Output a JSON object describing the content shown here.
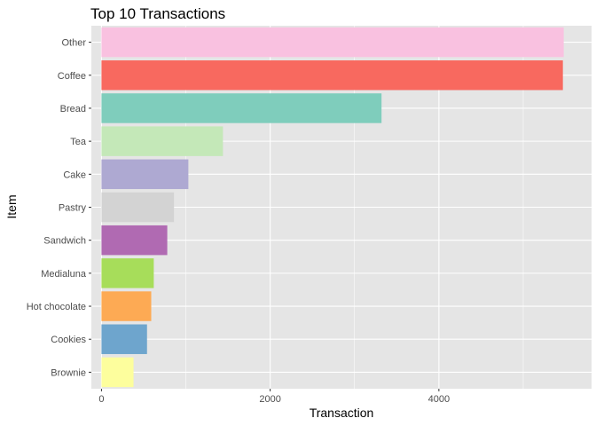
{
  "chart_data": {
    "type": "bar",
    "orientation": "horizontal",
    "title": "Top 10 Transactions",
    "xlabel": "Transaction",
    "ylabel": "Item",
    "xlim": [
      -120,
      5810
    ],
    "xticks": [
      0,
      2000,
      4000
    ],
    "grid": true,
    "legend": "none",
    "panel_background": "#E5E5E5",
    "grid_color": "#FFFFFF",
    "categories": [
      "Other",
      "Coffee",
      "Bread",
      "Tea",
      "Cake",
      "Pastry",
      "Sandwich",
      "Medialuna",
      "Hot chocolate",
      "Cookies",
      "Brownie"
    ],
    "values": [
      5480,
      5470,
      3320,
      1440,
      1030,
      860,
      780,
      620,
      590,
      540,
      380
    ],
    "colors": [
      "#F9C1E0",
      "#F8695F",
      "#7FCDBC",
      "#C4E8B8",
      "#AEA9D2",
      "#D3D3D3",
      "#B06AB2",
      "#A7DD5A",
      "#FDAA54",
      "#6EA5CD",
      "#FDFE9D"
    ]
  }
}
